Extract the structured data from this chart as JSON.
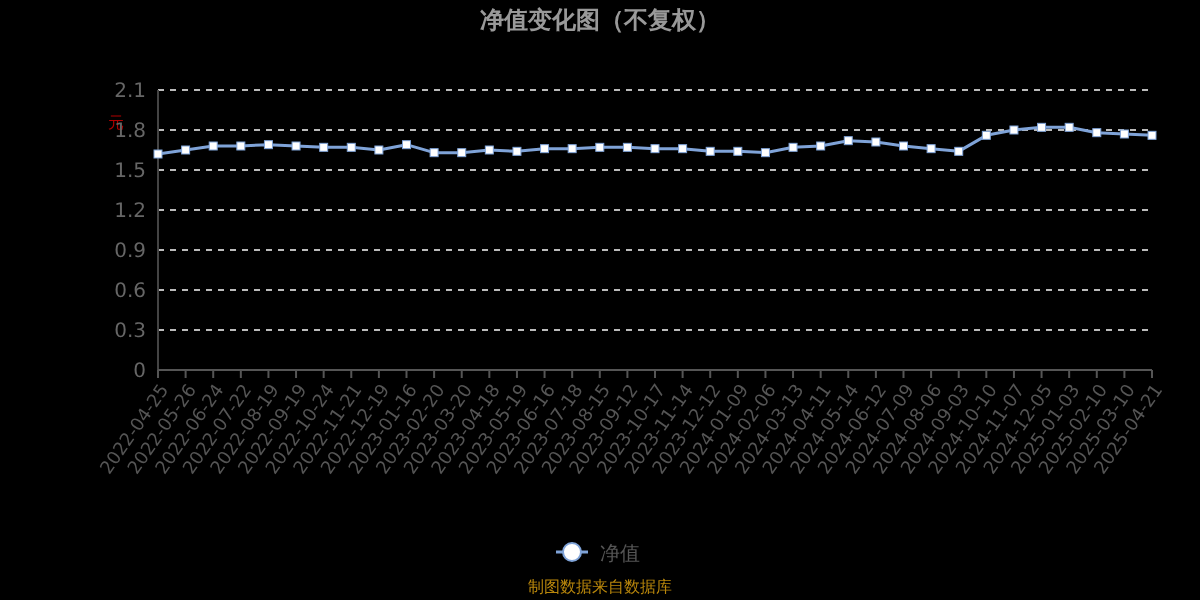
{
  "chart_data": {
    "type": "line",
    "title": "净值变化图（不复权）",
    "ylabel": "元",
    "categories": [
      "2022-04-25",
      "2022-05-26",
      "2022-06-24",
      "2022-07-22",
      "2022-08-19",
      "2022-09-19",
      "2022-10-24",
      "2022-11-21",
      "2022-12-19",
      "2023-01-16",
      "2023-02-20",
      "2023-03-20",
      "2023-04-18",
      "2023-05-19",
      "2023-06-16",
      "2023-07-18",
      "2023-08-15",
      "2023-09-12",
      "2023-10-17",
      "2023-11-14",
      "2023-12-12",
      "2024-01-09",
      "2024-02-06",
      "2024-03-13",
      "2024-04-11",
      "2024-05-14",
      "2024-06-12",
      "2024-07-09",
      "2024-08-06",
      "2024-09-03",
      "2024-10-10",
      "2024-11-07",
      "2024-12-05",
      "2025-01-03",
      "2025-02-10",
      "2025-03-10",
      "2025-04-21"
    ],
    "series": [
      {
        "name": "净值",
        "color": "#7fa3d8",
        "values": [
          1.62,
          1.65,
          1.68,
          1.68,
          1.69,
          1.68,
          1.67,
          1.67,
          1.65,
          1.69,
          1.63,
          1.63,
          1.65,
          1.64,
          1.66,
          1.66,
          1.67,
          1.67,
          1.66,
          1.66,
          1.64,
          1.64,
          1.63,
          1.67,
          1.68,
          1.72,
          1.71,
          1.68,
          1.66,
          1.64,
          1.76,
          1.8,
          1.82,
          1.82,
          1.78,
          1.77,
          1.76
        ]
      }
    ],
    "ylim": [
      0,
      2.1
    ],
    "yticks": [
      0,
      0.3,
      0.6,
      0.9,
      1.2,
      1.5,
      1.8,
      2.1
    ],
    "grid": "y",
    "legend": "bottom",
    "marker": "square",
    "line_style": "solid",
    "annotations": [
      "制图数据来自数据库"
    ]
  }
}
